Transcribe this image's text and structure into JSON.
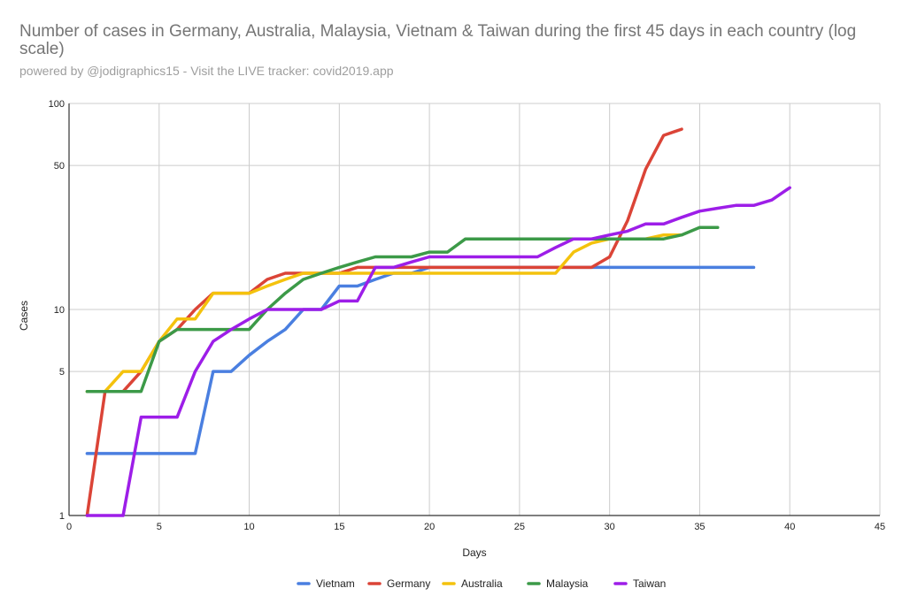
{
  "title": "Number of cases in Germany, Australia, Malaysia, Vietnam & Taiwan during the first 45 days in each country (log scale)",
  "subtitle": "powered by @jodigraphics15 - Visit the LIVE tracker: covid2019.app",
  "chart_data": {
    "type": "line",
    "title": "Number of cases in Germany, Australia, Malaysia, Vietnam & Taiwan during the first 45 days in each country (log scale)",
    "xlabel": "Days",
    "ylabel": "Cases",
    "xlim": [
      0,
      45
    ],
    "ylim": [
      1,
      100
    ],
    "yscale": "log",
    "xticks": [
      0,
      5,
      10,
      15,
      20,
      25,
      30,
      35,
      40,
      45
    ],
    "yticks": [
      1,
      5,
      10,
      50,
      100
    ],
    "grid": true,
    "legend_position": "bottom",
    "series": [
      {
        "name": "Vietnam",
        "color": "#4a7fe0",
        "x": [
          1,
          2,
          3,
          4,
          5,
          6,
          7,
          8,
          9,
          10,
          11,
          12,
          13,
          14,
          15,
          16,
          17,
          18,
          19,
          20,
          21,
          22,
          23,
          24,
          25,
          26,
          27,
          28,
          29,
          30,
          31,
          32,
          33,
          34,
          35,
          36,
          37,
          38
        ],
        "values": [
          2,
          2,
          2,
          2,
          2,
          2,
          2,
          5,
          5,
          6,
          7,
          8,
          10,
          10,
          13,
          13,
          14,
          15,
          15,
          16,
          16,
          16,
          16,
          16,
          16,
          16,
          16,
          16,
          16,
          16,
          16,
          16,
          16,
          16,
          16,
          16,
          16,
          16
        ]
      },
      {
        "name": "Germany",
        "color": "#db4437",
        "x": [
          1,
          2,
          3,
          4,
          5,
          6,
          7,
          8,
          9,
          10,
          11,
          12,
          13,
          14,
          15,
          16,
          17,
          18,
          19,
          20,
          21,
          22,
          23,
          24,
          25,
          26,
          27,
          28,
          29,
          30,
          31,
          32,
          33,
          34
        ],
        "values": [
          1,
          4,
          4,
          5,
          7,
          8,
          10,
          12,
          12,
          12,
          14,
          15,
          15,
          15,
          15,
          16,
          16,
          16,
          16,
          16,
          16,
          16,
          16,
          16,
          16,
          16,
          16,
          16,
          16,
          18,
          27,
          48,
          70,
          75
        ]
      },
      {
        "name": "Australia",
        "color": "#f4c20d",
        "x": [
          1,
          2,
          3,
          4,
          5,
          6,
          7,
          8,
          9,
          10,
          11,
          12,
          13,
          14,
          15,
          16,
          17,
          18,
          19,
          20,
          21,
          22,
          23,
          24,
          25,
          26,
          27,
          28,
          29,
          30,
          31,
          32,
          33,
          34
        ],
        "values": [
          4,
          4,
          5,
          5,
          7,
          9,
          9,
          12,
          12,
          12,
          13,
          14,
          15,
          15,
          15,
          15,
          15,
          15,
          15,
          15,
          15,
          15,
          15,
          15,
          15,
          15,
          15,
          19,
          21,
          22,
          22,
          22,
          23,
          23
        ]
      },
      {
        "name": "Malaysia",
        "color": "#3c9a48",
        "x": [
          1,
          2,
          3,
          4,
          5,
          6,
          7,
          8,
          9,
          10,
          11,
          12,
          13,
          14,
          15,
          16,
          17,
          18,
          19,
          20,
          21,
          22,
          23,
          24,
          25,
          26,
          27,
          28,
          29,
          30,
          31,
          32,
          33,
          34,
          35,
          36
        ],
        "values": [
          4,
          4,
          4,
          4,
          7,
          8,
          8,
          8,
          8,
          8,
          10,
          12,
          14,
          15,
          16,
          17,
          18,
          18,
          18,
          19,
          19,
          22,
          22,
          22,
          22,
          22,
          22,
          22,
          22,
          22,
          22,
          22,
          22,
          23,
          25,
          25
        ]
      },
      {
        "name": "Taiwan",
        "color": "#9d1ee8",
        "x": [
          1,
          2,
          3,
          4,
          5,
          6,
          7,
          8,
          9,
          10,
          11,
          12,
          13,
          14,
          15,
          16,
          17,
          18,
          19,
          20,
          21,
          22,
          23,
          24,
          25,
          26,
          27,
          28,
          29,
          30,
          31,
          32,
          33,
          34,
          35,
          36,
          37,
          38,
          39,
          40
        ],
        "values": [
          1,
          1,
          1,
          3,
          3,
          3,
          5,
          7,
          8,
          9,
          10,
          10,
          10,
          10,
          11,
          11,
          16,
          16,
          17,
          18,
          18,
          18,
          18,
          18,
          18,
          18,
          20,
          22,
          22,
          23,
          24,
          26,
          26,
          28,
          30,
          31,
          32,
          32,
          34,
          39
        ]
      }
    ]
  }
}
